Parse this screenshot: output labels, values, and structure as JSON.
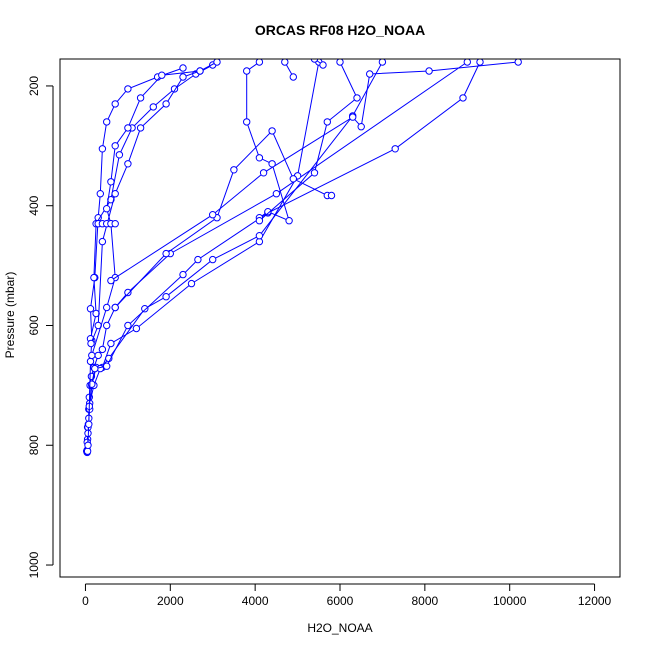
{
  "chart_data": {
    "type": "line",
    "title": "ORCAS RF08 H2O_NOAA",
    "xlabel": "H2O_NOAA",
    "ylabel": "Pressure (mbar)",
    "xlim": [
      -600,
      12600
    ],
    "ylim": [
      1020,
      155
    ],
    "y_reversed": true,
    "x_ticks": [
      0,
      2000,
      4000,
      6000,
      8000,
      10000,
      12000
    ],
    "y_ticks": [
      200,
      400,
      600,
      800,
      1000
    ],
    "series_color": "#0000ff",
    "marker": "open-circle",
    "series": [
      {
        "points": [
          [
            40,
            812
          ],
          [
            40,
            808
          ],
          [
            50,
            790
          ],
          [
            50,
            770
          ],
          [
            70,
            765
          ],
          [
            80,
            740
          ],
          [
            90,
            720
          ],
          [
            110,
            700
          ],
          [
            140,
            685
          ],
          [
            200,
            670
          ],
          [
            300,
            650
          ],
          [
            400,
            640
          ],
          [
            500,
            600
          ],
          [
            700,
            570
          ],
          [
            1000,
            545
          ],
          [
            2000,
            480
          ],
          [
            4500,
            380
          ],
          [
            9000,
            160
          ]
        ]
      },
      {
        "points": [
          [
            30,
            810
          ],
          [
            40,
            795
          ],
          [
            60,
            770
          ],
          [
            100,
            740
          ],
          [
            150,
            700
          ],
          [
            250,
            670
          ],
          [
            400,
            670
          ],
          [
            600,
            630
          ],
          [
            1200,
            605
          ],
          [
            2500,
            530
          ],
          [
            4100,
            460
          ],
          [
            5000,
            350
          ],
          [
            5500,
            160
          ]
        ]
      },
      {
        "points": [
          [
            50,
            810
          ],
          [
            60,
            780
          ],
          [
            80,
            755
          ],
          [
            100,
            730
          ],
          [
            200,
            700
          ],
          [
            350,
            672
          ],
          [
            550,
            655
          ],
          [
            1400,
            572
          ],
          [
            1900,
            552
          ],
          [
            3000,
            490
          ],
          [
            4100,
            450
          ],
          [
            6300,
            250
          ],
          [
            7000,
            160
          ]
        ]
      },
      {
        "points": [
          [
            60,
            800
          ],
          [
            90,
            735
          ],
          [
            150,
            698
          ],
          [
            220,
            672
          ],
          [
            500,
            668
          ],
          [
            1000,
            600
          ],
          [
            2300,
            515
          ],
          [
            2650,
            490
          ],
          [
            4300,
            412
          ],
          [
            7300,
            305
          ],
          [
            8900,
            220
          ],
          [
            9300,
            160
          ]
        ]
      },
      {
        "points": [
          [
            80,
            765
          ],
          [
            120,
            660
          ],
          [
            150,
            625
          ],
          [
            120,
            572
          ],
          [
            220,
            520
          ],
          [
            300,
            420
          ],
          [
            350,
            380
          ],
          [
            400,
            305
          ],
          [
            500,
            260
          ],
          [
            700,
            230
          ],
          [
            1000,
            205
          ],
          [
            1700,
            185
          ],
          [
            2300,
            170
          ]
        ]
      },
      {
        "points": [
          [
            120,
            622
          ],
          [
            250,
            580
          ],
          [
            200,
            520
          ],
          [
            250,
            430
          ],
          [
            600,
            390
          ],
          [
            800,
            315
          ],
          [
            1100,
            270
          ],
          [
            1600,
            235
          ],
          [
            2100,
            205
          ],
          [
            2600,
            180
          ],
          [
            3000,
            165
          ]
        ]
      },
      {
        "points": [
          [
            130,
            630
          ],
          [
            300,
            600
          ],
          [
            400,
            460
          ],
          [
            700,
            380
          ],
          [
            1000,
            330
          ],
          [
            1300,
            270
          ],
          [
            1900,
            230
          ],
          [
            2300,
            185
          ],
          [
            2700,
            175
          ],
          [
            3100,
            160
          ]
        ]
      },
      {
        "points": [
          [
            150,
            650
          ],
          [
            500,
            570
          ],
          [
            700,
            520
          ],
          [
            600,
            430
          ],
          [
            500,
            405
          ],
          [
            600,
            360
          ],
          [
            700,
            300
          ],
          [
            1000,
            270
          ],
          [
            1300,
            220
          ],
          [
            1800,
            182
          ],
          [
            2700,
            175
          ]
        ]
      },
      {
        "points": [
          [
            300,
            430
          ],
          [
            400,
            430
          ],
          [
            500,
            430
          ],
          [
            600,
            430
          ],
          [
            700,
            430
          ]
        ]
      },
      {
        "points": [
          [
            700,
            570
          ],
          [
            1900,
            480
          ],
          [
            3100,
            420
          ],
          [
            3500,
            340
          ],
          [
            4400,
            275
          ],
          [
            4900,
            355
          ],
          [
            5700,
            383
          ],
          [
            5800,
            383
          ]
        ]
      },
      {
        "points": [
          [
            600,
            525
          ],
          [
            3000,
            415
          ],
          [
            4200,
            345
          ],
          [
            6300,
            252
          ],
          [
            6500,
            268
          ],
          [
            6700,
            180
          ],
          [
            8100,
            175
          ],
          [
            10200,
            160
          ]
        ]
      },
      {
        "points": [
          [
            4100,
            420
          ],
          [
            4300,
            410
          ],
          [
            4800,
            425
          ],
          [
            4400,
            330
          ],
          [
            4100,
            320
          ],
          [
            3800,
            260
          ],
          [
            3800,
            175
          ],
          [
            4100,
            160
          ]
        ]
      },
      {
        "points": [
          [
            4100,
            425
          ],
          [
            5400,
            345
          ],
          [
            5700,
            260
          ],
          [
            6400,
            220
          ],
          [
            6000,
            160
          ]
        ]
      },
      {
        "points": [
          [
            4900,
            185
          ],
          [
            4700,
            160
          ]
        ]
      },
      {
        "points": [
          [
            5600,
            165
          ],
          [
            5400,
            155
          ]
        ]
      }
    ]
  }
}
